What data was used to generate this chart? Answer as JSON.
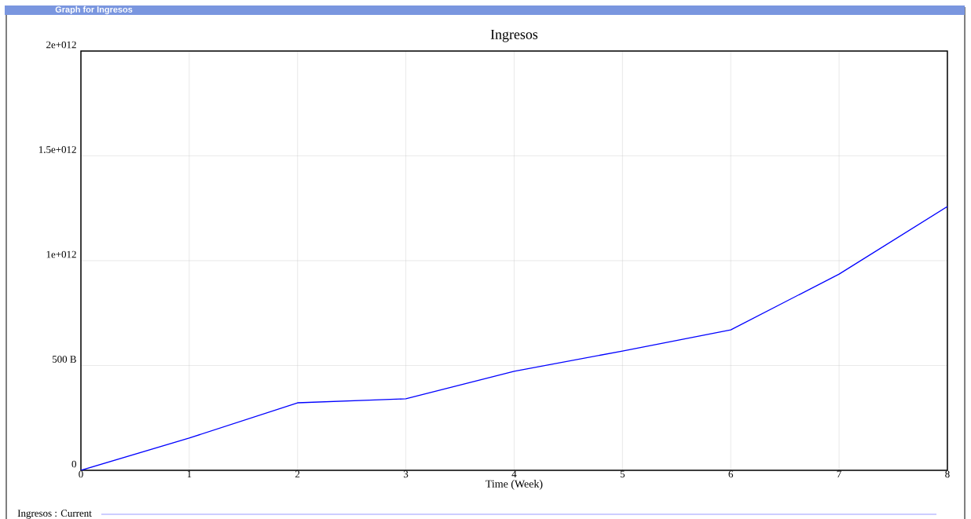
{
  "chart_data": {
    "type": "line",
    "title": "Ingresos",
    "xlabel": "Time (Week)",
    "annotations": [
      "Graph for Ingresos"
    ],
    "x": [
      0,
      1,
      2,
      3,
      4,
      5,
      6,
      7,
      8
    ],
    "series": [
      {
        "name": "Ingresos : Current",
        "color": "#0000ff",
        "values": [
          0,
          154000000000.0,
          322000000000.0,
          341000000000.0,
          472000000000.0,
          569000000000.0,
          670000000000.0,
          936000000000.0,
          1258000000000.0
        ]
      }
    ],
    "xlim": [
      0,
      8
    ],
    "xticks": [
      0,
      1,
      2,
      3,
      4,
      5,
      6,
      7,
      8
    ],
    "ylim": [
      0,
      2000000000000.0
    ],
    "yticks": [
      0,
      {
        "value": 500000000000.0,
        "label": "500 B"
      },
      {
        "value": 1000000000000.0,
        "label": "1e+012"
      },
      {
        "value": 1500000000000.0,
        "label": "1.5e+012"
      },
      {
        "value": 2000000000000.0,
        "label": "2e+012"
      }
    ],
    "grid": true,
    "legend": "bottom",
    "marker": "none",
    "line_style": "solid"
  }
}
